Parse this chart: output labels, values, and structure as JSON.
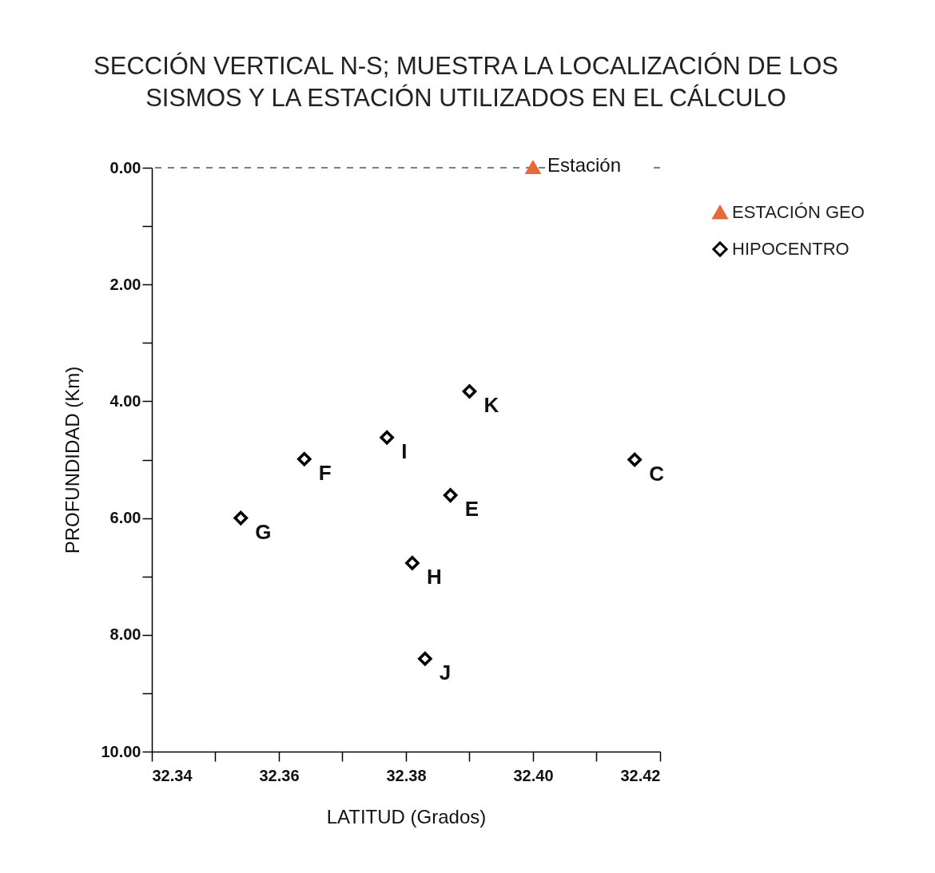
{
  "chart_data": {
    "type": "scatter",
    "title": "SECCIÓN VERTICAL N-S;  MUESTRA LA LOCALIZACIÓN DE LOS\nSISMOS Y LA ESTACIÓN UTILIZADOS EN EL CÁLCULO",
    "xlabel": "LATITUD (Grados)",
    "ylabel": "PROFUNDIDAD (Km)",
    "series": [
      {
        "name": "ESTACIÓN GEO",
        "color": "#e8683c",
        "marker": "triangle",
        "x": [
          32.4
        ],
        "values": [
          0
        ]
      },
      {
        "name": "HIPOCENTRO",
        "color": "#000000",
        "marker": "diamond",
        "x": [
          32.39,
          32.377,
          32.364,
          32.416,
          32.387,
          32.354,
          32.381,
          32.383
        ],
        "values": [
          3.83,
          4.62,
          4.99,
          5.0,
          5.61,
          6.0,
          6.77,
          8.41
        ]
      }
    ],
    "annotations": [
      {
        "text": "Estación",
        "x": 32.4,
        "y": 0
      },
      {
        "text": "K",
        "x": 32.39,
        "y": 3.83
      },
      {
        "text": "I",
        "x": 32.377,
        "y": 4.62
      },
      {
        "text": "F",
        "x": 32.364,
        "y": 4.99
      },
      {
        "text": "C",
        "x": 32.416,
        "y": 5.0
      },
      {
        "text": "E",
        "x": 32.387,
        "y": 5.61
      },
      {
        "text": "G",
        "x": 32.354,
        "y": 6.0
      },
      {
        "text": "H",
        "x": 32.381,
        "y": 6.77
      },
      {
        "text": "J",
        "x": 32.383,
        "y": 8.41
      }
    ],
    "xlim": [
      32.34,
      32.42
    ],
    "ylim": [
      10,
      0
    ],
    "xticks": [
      32.34,
      {
        "value": 32.35,
        "label": null
      },
      32.36,
      {
        "value": 32.37,
        "label": null
      },
      32.38,
      {
        "value": 32.39,
        "label": null
      },
      {
        "value": 32.4,
        "label": "32.40"
      },
      {
        "value": 32.41,
        "label": null
      },
      32.42
    ],
    "yticks": [
      {
        "value": 0,
        "label": "0.00"
      },
      {
        "value": 1,
        "label": null
      },
      {
        "value": 2,
        "label": "2.00"
      },
      {
        "value": 3,
        "label": null
      },
      {
        "value": 4,
        "label": "4.00"
      },
      {
        "value": 5,
        "label": null
      },
      {
        "value": 6,
        "label": "6.00"
      },
      {
        "value": 7,
        "label": null
      },
      {
        "value": 8,
        "label": "8.00"
      },
      {
        "value": 9,
        "label": null
      },
      {
        "value": 10,
        "label": "10.00"
      }
    ],
    "ref_lines": [
      {
        "axis": "y",
        "value": 0,
        "color": "#555555",
        "line_style": "dashed"
      }
    ],
    "grid": false,
    "legend": "top right"
  }
}
